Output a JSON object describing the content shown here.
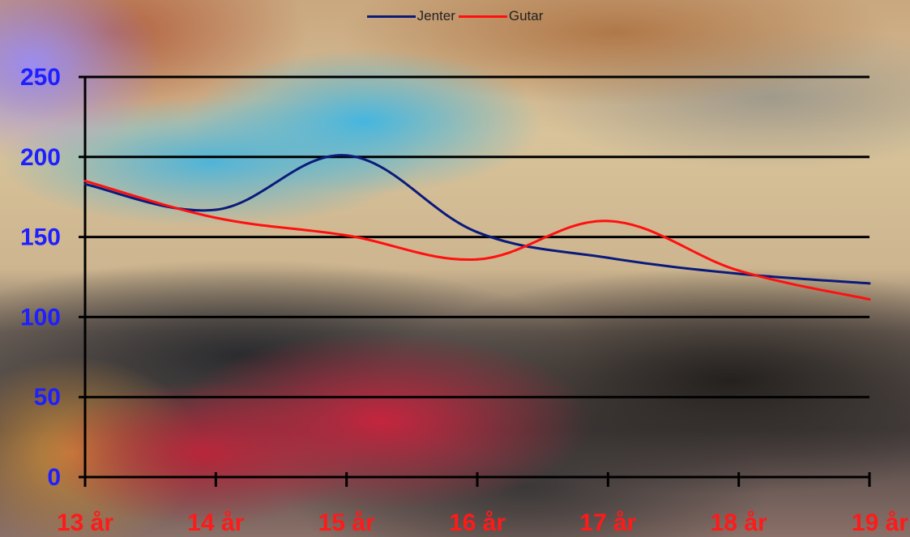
{
  "chart_data": {
    "type": "line",
    "categories": [
      "13 år",
      "14 år",
      "15 år",
      "16 år",
      "17 år",
      "18 år",
      "19 år"
    ],
    "series": [
      {
        "name": "Jenter",
        "values": [
          183,
          167,
          201,
          153,
          137,
          127,
          121
        ],
        "color": "#0a1a7a"
      },
      {
        "name": "Gutar",
        "values": [
          185,
          162,
          151,
          136,
          160,
          129,
          111
        ],
        "color": "#ff1010"
      }
    ],
    "ylim": [
      0,
      250
    ],
    "yticks": [
      0,
      50,
      100,
      150,
      200,
      250
    ],
    "grid": true,
    "legend_position": "top-center",
    "title": "",
    "xlabel": "",
    "ylabel": ""
  }
}
